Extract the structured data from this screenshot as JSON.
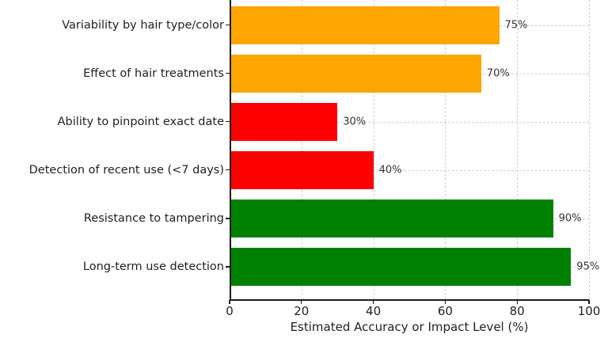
{
  "chart_data": {
    "type": "bar",
    "orientation": "horizontal",
    "title": "",
    "xlabel": "Estimated Accuracy or Impact Level (%)",
    "ylabel": "",
    "categories": [
      "Variability by hair type/color",
      "Effect of hair treatments",
      "Ability to pinpoint exact date",
      "Detection of recent use (<7 days)",
      "Resistance to tampering",
      "Long-term use detection"
    ],
    "values": [
      75,
      70,
      30,
      40,
      90,
      95
    ],
    "value_labels": [
      "75%",
      "70%",
      "30%",
      "40%",
      "90%",
      "95%"
    ],
    "bar_colors": [
      "#FFA500",
      "#FFA500",
      "#FF0000",
      "#FF0000",
      "#008000",
      "#008000"
    ],
    "xlim": [
      0,
      100
    ],
    "xticks": [
      0,
      20,
      40,
      60,
      80,
      100
    ],
    "xtick_labels": [
      "0",
      "20",
      "40",
      "60",
      "80",
      "100"
    ],
    "grid": {
      "visible": true,
      "style": "dashed",
      "axes": "both",
      "color": "#cfcfcf"
    },
    "legend": {
      "visible": false
    },
    "colors": {
      "axis": "#1a1a1a",
      "tick_text": "#1f1f1f",
      "value_text": "#333333",
      "background": "#ffffff"
    }
  }
}
